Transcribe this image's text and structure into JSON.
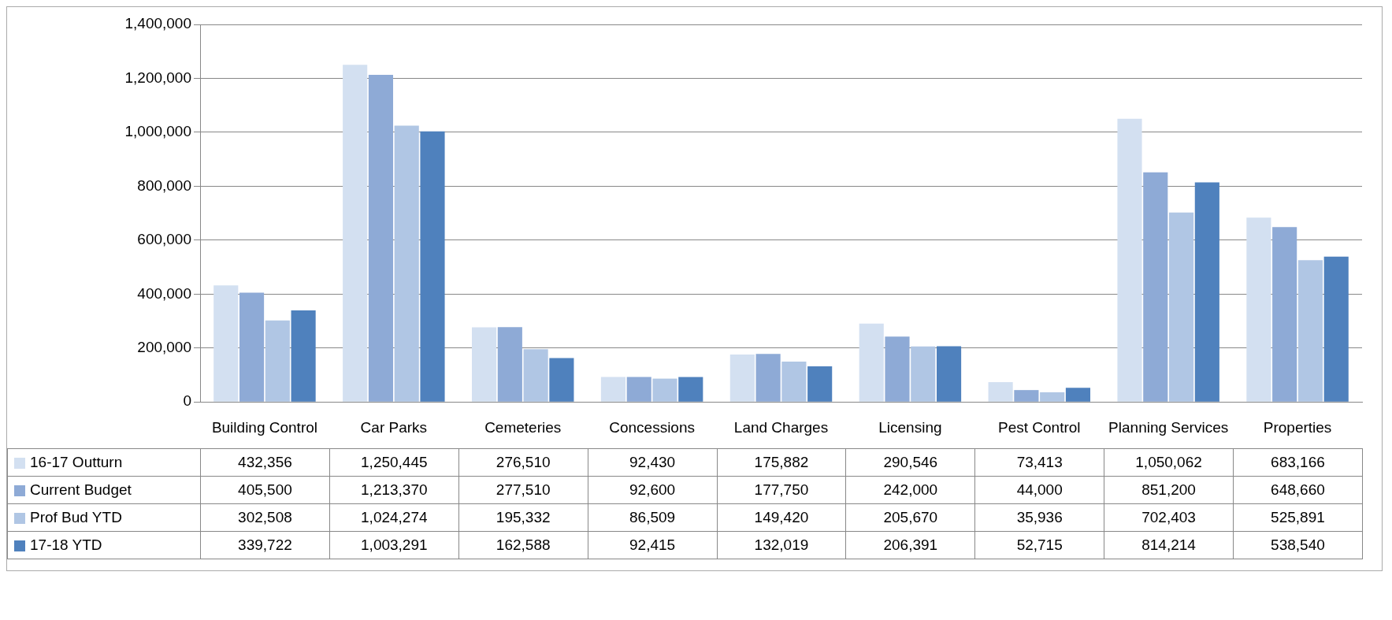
{
  "chart_data": {
    "type": "bar",
    "categories": [
      "Building Control",
      "Car Parks",
      "Cemeteries",
      "Concessions",
      "Land Charges",
      "Licensing",
      "Pest Control",
      "Planning Services",
      "Properties"
    ],
    "series": [
      {
        "name": "16-17 Outturn",
        "color": "#d3e0f1",
        "values": [
          432356,
          1250445,
          276510,
          92430,
          175882,
          290546,
          73413,
          1050062,
          683166
        ],
        "value_labels": [
          "432,356",
          "1,250,445",
          "276,510",
          "92,430",
          "175,882",
          "290,546",
          "73,413",
          "1,050,062",
          "683,166"
        ]
      },
      {
        "name": "Current Budget",
        "color": "#8eaad6",
        "values": [
          405500,
          1213370,
          277510,
          92600,
          177750,
          242000,
          44000,
          851200,
          648660
        ],
        "value_labels": [
          "405,500",
          "1,213,370",
          "277,510",
          "92,600",
          "177,750",
          "242,000",
          "44,000",
          "851,200",
          "648,660"
        ]
      },
      {
        "name": "Prof Bud YTD",
        "color": "#b0c6e4",
        "values": [
          302508,
          1024274,
          195332,
          86509,
          149420,
          205670,
          35936,
          702403,
          525891
        ],
        "value_labels": [
          "302,508",
          "1,024,274",
          "195,332",
          "86,509",
          "149,420",
          "205,670",
          "35,936",
          "702,403",
          "525,891"
        ]
      },
      {
        "name": "17-18 YTD",
        "color": "#4f81bd",
        "values": [
          339722,
          1003291,
          162588,
          92415,
          132019,
          206391,
          52715,
          814214,
          538540
        ],
        "value_labels": [
          "339,722",
          "1,003,291",
          "162,588",
          "92,415",
          "132,019",
          "206,391",
          "52,715",
          "814,214",
          "538,540"
        ]
      }
    ],
    "ylim": [
      0,
      1400000
    ],
    "yticks": [
      {
        "value": 0,
        "label": "0"
      },
      {
        "value": 200000,
        "label": "200,000"
      },
      {
        "value": 400000,
        "label": "400,000"
      },
      {
        "value": 600000,
        "label": "600,000"
      },
      {
        "value": 800000,
        "label": "800,000"
      },
      {
        "value": 1000000,
        "label": "1,000,000"
      },
      {
        "value": 1200000,
        "label": "1,200,000"
      },
      {
        "value": 1400000,
        "label": "1,400,000"
      }
    ],
    "grid": "y",
    "legend": "bottom"
  }
}
